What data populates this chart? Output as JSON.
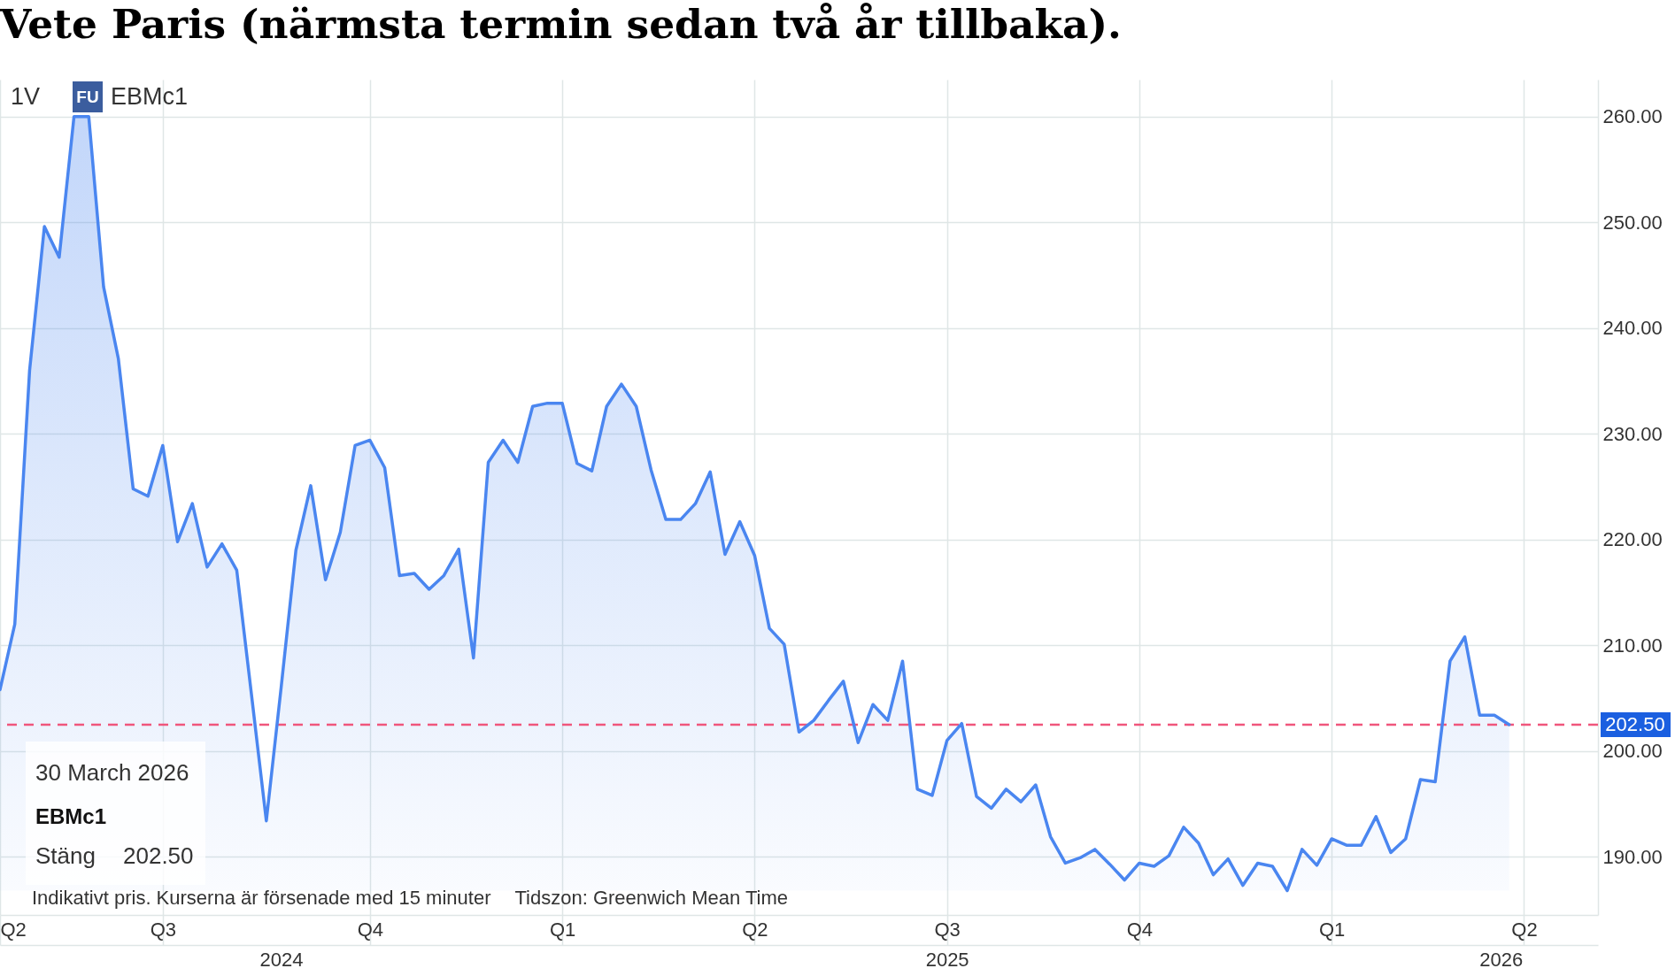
{
  "chart_data": {
    "type": "area",
    "title": "Vete Paris (närmsta termin sedan två år tillbaka).",
    "x": [
      "2024-04-15",
      "2024-04-22",
      "2024-04-29",
      "2024-05-06",
      "2024-05-13",
      "2024-05-20",
      "2024-05-27",
      "2024-06-03",
      "2024-06-10",
      "2024-06-17",
      "2024-06-24",
      "2024-07-01",
      "2024-07-08",
      "2024-07-15",
      "2024-07-22",
      "2024-07-29",
      "2024-08-05",
      "2024-08-12",
      "2024-08-19",
      "2024-08-26",
      "2024-09-02",
      "2024-09-09",
      "2024-09-16",
      "2024-09-23",
      "2024-09-30",
      "2024-10-07",
      "2024-10-14",
      "2024-10-21",
      "2024-10-28",
      "2024-11-04",
      "2024-11-11",
      "2024-11-18",
      "2024-11-25",
      "2024-12-02",
      "2024-12-09",
      "2024-12-16",
      "2024-12-23",
      "2024-12-30",
      "2025-01-06",
      "2025-01-13",
      "2025-01-20",
      "2025-01-27",
      "2025-02-03",
      "2025-02-10",
      "2025-02-17",
      "2025-02-24",
      "2025-03-03",
      "2025-03-10",
      "2025-03-17",
      "2025-03-24",
      "2025-03-31",
      "2025-04-07",
      "2025-04-14",
      "2025-04-21",
      "2025-04-28",
      "2025-05-05",
      "2025-05-12",
      "2025-05-19",
      "2025-05-26",
      "2025-06-02",
      "2025-06-09",
      "2025-06-16",
      "2025-06-23",
      "2025-06-30",
      "2025-07-07",
      "2025-07-14",
      "2025-07-21",
      "2025-07-28",
      "2025-08-04",
      "2025-08-11",
      "2025-08-18",
      "2025-08-25",
      "2025-09-01",
      "2025-09-08",
      "2025-09-15",
      "2025-09-22",
      "2025-09-29",
      "2025-10-06",
      "2025-10-13",
      "2025-10-20",
      "2025-10-27",
      "2025-11-03",
      "2025-11-10",
      "2025-11-17",
      "2025-11-24",
      "2025-12-01",
      "2025-12-08",
      "2025-12-15",
      "2025-12-22",
      "2025-12-29",
      "2026-01-05",
      "2026-01-12",
      "2026-01-19",
      "2026-01-26",
      "2026-02-02",
      "2026-02-09",
      "2026-02-16",
      "2026-02-23",
      "2026-03-02",
      "2026-03-09",
      "2026-03-16",
      "2026-03-23",
      "2026-03-30"
    ],
    "series": [
      {
        "color": "#4a86f0",
        "values": [
          205.8,
          212.0,
          236.0,
          249.6,
          246.7,
          260.0,
          260.0,
          243.9,
          237.1,
          224.8,
          224.1,
          228.9,
          219.8,
          223.4,
          217.4,
          219.6,
          217.1,
          205.3,
          193.4,
          206.0,
          219.0,
          225.1,
          216.2,
          220.7,
          228.9,
          229.4,
          226.8,
          216.6,
          216.8,
          215.3,
          216.6,
          219.1,
          208.8,
          227.3,
          229.4,
          227.3,
          232.6,
          232.9,
          232.9,
          227.2,
          226.5,
          232.6,
          234.7,
          232.6,
          226.6,
          221.9,
          221.9,
          223.4,
          226.4,
          218.6,
          221.7,
          218.5,
          211.6,
          210.1,
          201.8,
          202.9,
          204.8,
          206.6,
          200.8,
          204.4,
          202.9,
          208.5,
          196.4,
          195.8,
          201.0,
          202.6,
          195.7,
          194.6,
          196.4,
          195.2,
          196.8,
          191.9,
          189.4,
          189.9,
          190.7,
          189.3,
          187.8,
          189.4,
          189.1,
          190.1,
          192.8,
          191.3,
          188.3,
          189.8,
          187.3,
          189.4,
          189.1,
          186.8,
          190.7,
          189.2,
          191.7,
          191.1,
          191.1,
          193.8,
          190.4,
          191.7,
          197.3,
          197.1,
          208.5,
          210.8,
          203.4,
          203.4,
          202.5
        ]
      }
    ],
    "xlim": [
      "2024-04-15",
      "2026-05-11"
    ],
    "xticks": [
      {
        "value": "2024-04-15",
        "label": "Q2"
      },
      {
        "value": "2024-07-01",
        "label": "Q3"
      },
      {
        "value": "2024-10-07",
        "label": "Q4"
      },
      {
        "value": "2025-01-06",
        "label": "Q1"
      },
      {
        "value": "2025-04-07",
        "label": "Q2"
      },
      {
        "value": "2025-07-07",
        "label": "Q3"
      },
      {
        "value": "2025-10-06",
        "label": "Q4"
      },
      {
        "value": "2026-01-05",
        "label": "Q1"
      },
      {
        "value": "2026-04-06",
        "label": "Q2"
      }
    ],
    "x2lim": [
      "2024-04-15",
      "2026-05-11"
    ],
    "x2ticks": [
      {
        "value": "2024-08-26",
        "label": "2024"
      },
      {
        "value": "2025-07-07",
        "label": "2025"
      },
      {
        "value": "2026-03-26",
        "label": "2026"
      }
    ],
    "ylim": [
      184.5,
      263.5
    ],
    "yticks": [
      {
        "value": 190,
        "label": "190.00"
      },
      {
        "value": 200,
        "label": "200.00"
      },
      {
        "value": 210,
        "label": "210.00"
      },
      {
        "value": 220,
        "label": "220.00"
      },
      {
        "value": 230,
        "label": "230.00"
      },
      {
        "value": 240,
        "label": "240.00"
      },
      {
        "value": 250,
        "label": "250.00"
      },
      {
        "value": 260,
        "label": "260.00"
      }
    ],
    "grid": true,
    "ref_lines": [
      {
        "axis": "y",
        "value": 202.5,
        "label": "202.50",
        "color": "#f0567c",
        "line_style": "dashed"
      }
    ],
    "annotations": [
      "1V",
      "FU",
      "EBMc1",
      "30 March 2026",
      "EBMc1",
      "Stäng",
      "202.50",
      "Indikativt pris. Kurserna är försenade med 15 minuter",
      "Tidszon: Greenwich Mean Time"
    ]
  }
}
